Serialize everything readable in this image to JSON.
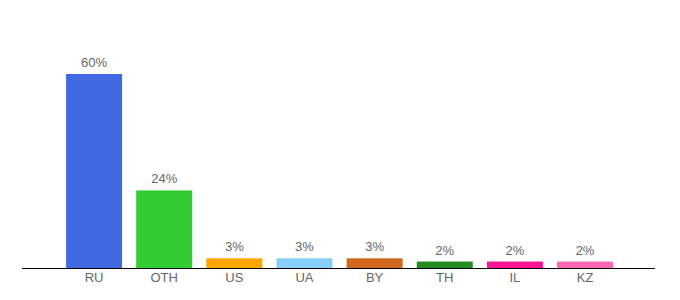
{
  "chart_data": {
    "type": "bar",
    "categories": [
      "RU",
      "OTH",
      "US",
      "UA",
      "BY",
      "TH",
      "IL",
      "KZ"
    ],
    "values": [
      60,
      24,
      3,
      3,
      3,
      2,
      2,
      2
    ],
    "value_labels": [
      "60%",
      "24%",
      "3%",
      "3%",
      "3%",
      "2%",
      "2%",
      "2%"
    ],
    "colors": [
      "#4169e1",
      "#32cd32",
      "#ffa500",
      "#87cefa",
      "#d2691e",
      "#228b22",
      "#ff1493",
      "#ff69b4"
    ],
    "ylim": [
      0,
      60
    ],
    "data_labels": true,
    "tick_labels": "x",
    "grid": false
  }
}
